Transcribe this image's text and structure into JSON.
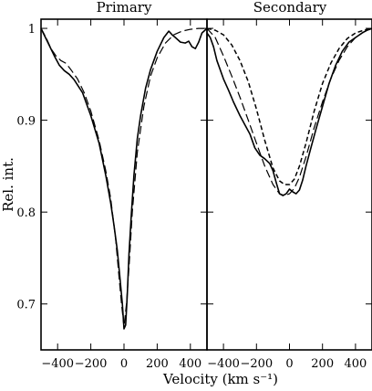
{
  "chart_data": [
    {
      "type": "line",
      "title": "Primary",
      "xlabel": "Velocity (km s⁻¹)",
      "ylabel": "Rel. int.",
      "xlim": [
        -500,
        500
      ],
      "ylim": [
        0.65,
        1.01
      ],
      "x_ticks": [
        -400,
        -200,
        0,
        200,
        400
      ],
      "y_ticks": [
        0.7,
        0.8,
        0.9,
        1
      ],
      "x_tick_labels": [
        "−400",
        "−200",
        "0",
        "200",
        "400"
      ],
      "y_tick_labels": [
        "0.7",
        "0.8",
        "0.9",
        "1"
      ],
      "grid": false,
      "series": [
        {
          "style": "solid",
          "x": [
            -500,
            -460,
            -420,
            -390,
            -360,
            -330,
            -300,
            -250,
            -200,
            -150,
            -110,
            -80,
            -60,
            -40,
            -25,
            -10,
            0,
            10,
            20,
            30,
            45,
            60,
            80,
            100,
            130,
            160,
            200,
            240,
            270,
            290,
            310,
            340,
            370,
            390,
            410,
            430,
            450,
            470,
            500
          ],
          "y": [
            1.0,
            0.985,
            0.97,
            0.96,
            0.954,
            0.95,
            0.944,
            0.93,
            0.905,
            0.875,
            0.84,
            0.81,
            0.785,
            0.758,
            0.73,
            0.7,
            0.673,
            0.677,
            0.71,
            0.755,
            0.8,
            0.84,
            0.88,
            0.905,
            0.935,
            0.955,
            0.975,
            0.99,
            0.997,
            0.993,
            0.99,
            0.985,
            0.984,
            0.986,
            0.98,
            0.978,
            0.985,
            0.995,
            1.0
          ]
        },
        {
          "style": "dashed",
          "x": [
            -500,
            -470,
            -440,
            -410,
            -380,
            -350,
            -320,
            -280,
            -240,
            -200,
            -150,
            -110,
            -80,
            -50,
            -30,
            -15,
            0,
            15,
            30,
            50,
            80,
            120,
            160,
            200,
            250,
            300,
            350,
            400,
            450,
            500
          ],
          "y": [
            1.0,
            0.99,
            0.978,
            0.97,
            0.965,
            0.962,
            0.955,
            0.945,
            0.93,
            0.91,
            0.878,
            0.845,
            0.815,
            0.77,
            0.73,
            0.7,
            0.675,
            0.7,
            0.74,
            0.8,
            0.865,
            0.915,
            0.948,
            0.968,
            0.984,
            0.993,
            0.997,
            0.999,
            1.0,
            1.0
          ]
        }
      ]
    },
    {
      "type": "line",
      "title": "Secondary",
      "xlabel": "Velocity (km s⁻¹)",
      "ylabel": "",
      "xlim": [
        -500,
        500
      ],
      "ylim": [
        0.65,
        1.01
      ],
      "x_ticks": [
        -400,
        -200,
        0,
        200,
        400
      ],
      "y_ticks": [
        0.7,
        0.8,
        0.9,
        1
      ],
      "x_tick_labels": [
        "−400",
        "−200",
        "0",
        "200",
        "400"
      ],
      "grid": false,
      "series": [
        {
          "style": "solid",
          "x": [
            -500,
            -480,
            -460,
            -440,
            -420,
            -400,
            -370,
            -340,
            -300,
            -270,
            -240,
            -210,
            -180,
            -150,
            -120,
            -100,
            -80,
            -60,
            -40,
            -20,
            0,
            20,
            40,
            60,
            80,
            100,
            130,
            160,
            200,
            240,
            280,
            320,
            360,
            400,
            440,
            470,
            500
          ],
          "y": [
            0.995,
            0.99,
            0.98,
            0.965,
            0.955,
            0.945,
            0.933,
            0.92,
            0.905,
            0.895,
            0.885,
            0.87,
            0.862,
            0.858,
            0.853,
            0.845,
            0.832,
            0.82,
            0.818,
            0.82,
            0.825,
            0.822,
            0.82,
            0.824,
            0.835,
            0.85,
            0.87,
            0.89,
            0.915,
            0.94,
            0.96,
            0.975,
            0.985,
            0.99,
            0.995,
            0.998,
            1.0
          ]
        },
        {
          "style": "dashed",
          "x": [
            -500,
            -450,
            -400,
            -350,
            -300,
            -250,
            -200,
            -150,
            -100,
            -60,
            -30,
            0,
            30,
            60,
            100,
            150,
            200,
            250,
            300,
            350,
            400,
            450,
            500
          ],
          "y": [
            1.0,
            0.99,
            0.97,
            0.948,
            0.925,
            0.9,
            0.875,
            0.85,
            0.83,
            0.82,
            0.818,
            0.82,
            0.826,
            0.838,
            0.86,
            0.892,
            0.92,
            0.945,
            0.965,
            0.98,
            0.99,
            0.996,
            1.0
          ]
        },
        {
          "style": "short-dashed",
          "x": [
            -500,
            -450,
            -400,
            -350,
            -300,
            -250,
            -200,
            -150,
            -100,
            -60,
            -30,
            0,
            30,
            60,
            100,
            150,
            200,
            250,
            300,
            350,
            400,
            450,
            500
          ],
          "y": [
            1.0,
            0.998,
            0.993,
            0.982,
            0.965,
            0.942,
            0.912,
            0.878,
            0.848,
            0.834,
            0.83,
            0.83,
            0.836,
            0.85,
            0.875,
            0.91,
            0.94,
            0.962,
            0.978,
            0.989,
            0.995,
            0.998,
            1.0
          ]
        }
      ]
    }
  ]
}
